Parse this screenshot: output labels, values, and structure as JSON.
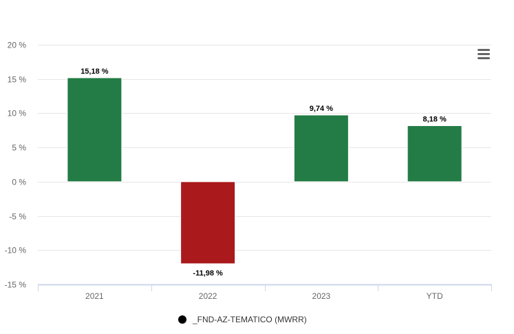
{
  "chart_data": {
    "type": "bar",
    "title": "",
    "xlabel": "",
    "ylabel": "",
    "categories": [
      "2021",
      "2022",
      "2023",
      "YTD"
    ],
    "series": [
      {
        "name": "_FND-AZ-TEMATICO (MWRR)",
        "values": [
          15.18,
          -11.98,
          9.74,
          8.18
        ],
        "data_labels": [
          "15,18 %",
          "-11,98 %",
          "9,74 %",
          "8,18 %"
        ]
      }
    ],
    "ylim": [
      -15,
      20
    ],
    "yticks": [
      20,
      15,
      10,
      5,
      0,
      -5,
      -10,
      -15
    ],
    "ytick_labels": [
      "20 %",
      "15 %",
      "10 %",
      "5 %",
      "0 %",
      "-5 %",
      "-10 %",
      "-15 %"
    ],
    "grid": true,
    "legend_position": "bottom-center",
    "colors": {
      "positive": "#237c45",
      "negative": "#aa191b",
      "grid": "#e6e6e6",
      "axis": "#ccd6eb",
      "legend_marker": "#000000"
    }
  },
  "menu": {
    "icon": "hamburger-menu-icon"
  }
}
